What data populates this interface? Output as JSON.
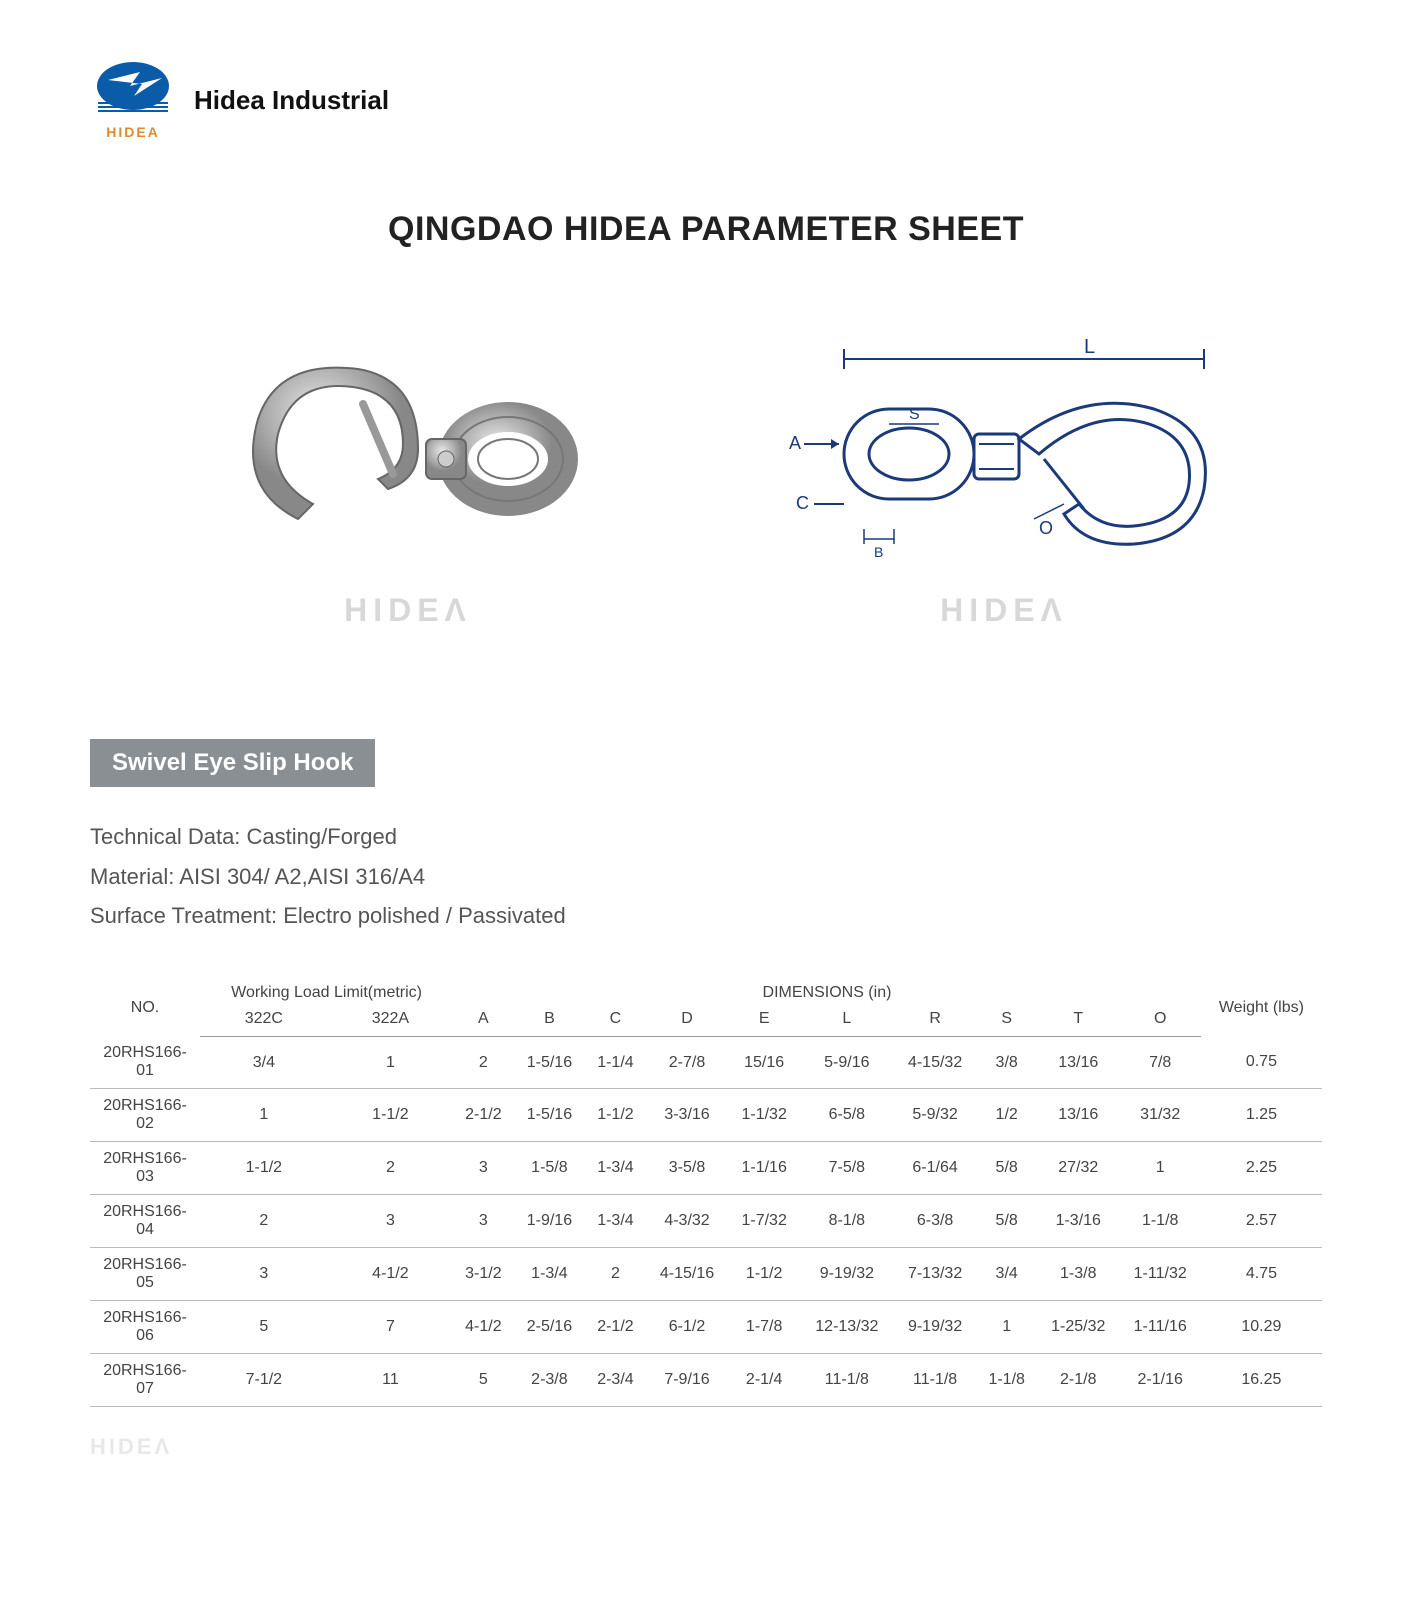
{
  "header": {
    "logo_caption": "HIDEA",
    "company_name": "Hidea Industrial"
  },
  "title": "QINGDAO HIDEA PARAMETER SHEET",
  "watermark_text": "HIDEΛ",
  "product": {
    "label": "Swivel Eye Slip Hook",
    "tech_data_label": "Technical Data:",
    "tech_data_value": "Casting/Forged",
    "material_label": "Material:",
    "material_value": "AISI 304/ A2,AISI 316/A4",
    "surface_label": "Surface Treatment:",
    "surface_value": "Electro polished / Passivated"
  },
  "table": {
    "header_groups": {
      "no": "NO.",
      "wll": "Working Load Limit(metric)",
      "dimensions": "DIMENSIONS (in)",
      "weight": "Weight (lbs)"
    },
    "sub_headers": [
      "322C",
      "322A",
      "A",
      "B",
      "C",
      "D",
      "E",
      "L",
      "R",
      "S",
      "T",
      "O"
    ],
    "rows": [
      [
        "20RHS166-01",
        "3/4",
        "1",
        "2",
        "1-5/16",
        "1-1/4",
        "2-7/8",
        "15/16",
        "5-9/16",
        "4-15/32",
        "3/8",
        "13/16",
        "7/8",
        "0.75"
      ],
      [
        "20RHS166-02",
        "1",
        "1-1/2",
        "2-1/2",
        "1-5/16",
        "1-1/2",
        "3-3/16",
        "1-1/32",
        "6-5/8",
        "5-9/32",
        "1/2",
        "13/16",
        "31/32",
        "1.25"
      ],
      [
        "20RHS166-03",
        "1-1/2",
        "2",
        "3",
        "1-5/8",
        "1-3/4",
        "3-5/8",
        "1-1/16",
        "7-5/8",
        "6-1/64",
        "5/8",
        "27/32",
        "1",
        "2.25"
      ],
      [
        "20RHS166-04",
        "2",
        "3",
        "3",
        "1-9/16",
        "1-3/4",
        "4-3/32",
        "1-7/32",
        "8-1/8",
        "6-3/8",
        "5/8",
        "1-3/16",
        "1-1/8",
        "2.57"
      ],
      [
        "20RHS166-05",
        "3",
        "4-1/2",
        "3-1/2",
        "1-3/4",
        "2",
        "4-15/16",
        "1-1/2",
        "9-19/32",
        "7-13/32",
        "3/4",
        "1-3/8",
        "1-11/32",
        "4.75"
      ],
      [
        "20RHS166-06",
        "5",
        "7",
        "4-1/2",
        "2-5/16",
        "2-1/2",
        "6-1/2",
        "1-7/8",
        "12-13/32",
        "9-19/32",
        "1",
        "1-25/32",
        "1-11/16",
        "10.29"
      ],
      [
        "20RHS166-07",
        "7-1/2",
        "11",
        "5",
        "2-3/8",
        "2-3/4",
        "7-9/16",
        "2-1/4",
        "11-1/8",
        "11-1/8",
        "1-1/8",
        "2-1/8",
        "2-1/16",
        "16.25"
      ]
    ]
  },
  "diagram_labels": {
    "L": "L",
    "S": "S",
    "A": "A",
    "C": "C",
    "O": "O",
    "B": "B"
  },
  "colors": {
    "brand_blue": "#0b5ca8",
    "brand_orange": "#E08A2E",
    "label_bg": "#8a8f93",
    "text_main": "#333333",
    "text_sub": "#555555",
    "watermark": "#d8d8d8",
    "border": "#bbbbbb"
  },
  "typography": {
    "title_fontsize": 34,
    "company_fontsize": 26,
    "label_fontsize": 24,
    "tech_fontsize": 22,
    "table_fontsize": 16
  }
}
